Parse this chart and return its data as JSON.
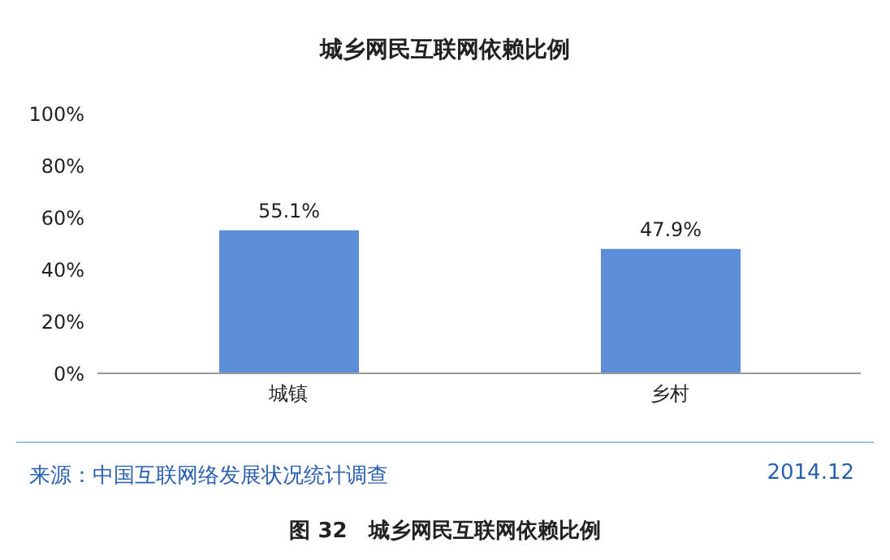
{
  "chart_data": {
    "type": "bar",
    "title": "城乡网民互联网依赖比例",
    "categories": [
      "城镇",
      "乡村"
    ],
    "values": [
      55.1,
      47.9
    ],
    "color": "#5b8ed6",
    "value_labels": [
      "55.1%",
      "47.9%"
    ],
    "ylim": [
      0,
      100
    ],
    "yticks": [
      {
        "value": 0,
        "label": "0%"
      },
      {
        "value": 20,
        "label": "20%"
      },
      {
        "value": 40,
        "label": "40%"
      },
      {
        "value": 60,
        "label": "60%"
      },
      {
        "value": 80,
        "label": "80%"
      },
      {
        "value": 100,
        "label": "100%"
      }
    ],
    "grid": false,
    "annotations": [
      "来源：中国互联网络发展状况统计调查",
      "2014.12",
      "图 32　城乡网民互联网依赖比例"
    ]
  }
}
